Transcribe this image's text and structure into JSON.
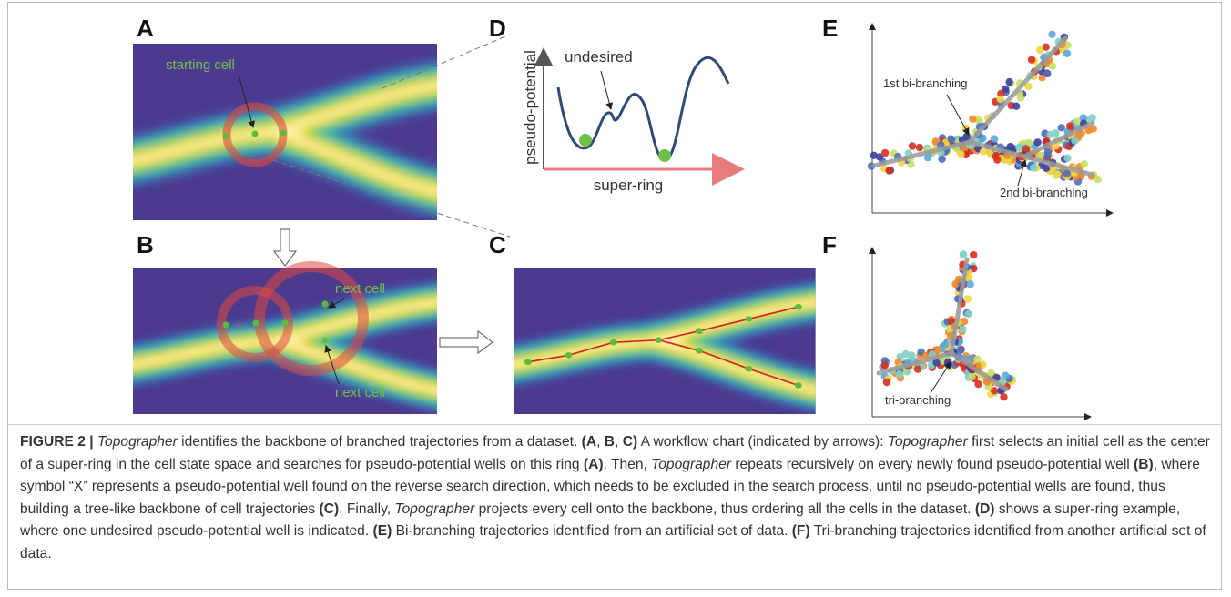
{
  "panel_labels": [
    "A",
    "B",
    "C",
    "D",
    "E",
    "F"
  ],
  "panel_a": {
    "annotation": "starting cell"
  },
  "panel_b": {
    "annotations": [
      "next cell",
      "next cell"
    ]
  },
  "panel_d": {
    "annotation": "undesired",
    "y_label": "pseudo-potential",
    "x_label": "super-ring"
  },
  "panel_e": {
    "annotations": [
      "1st bi-branching",
      "2nd bi-branching"
    ]
  },
  "panel_f": {
    "annotation": "tri-branching"
  },
  "caption": [
    {
      "text": "FIGURE 2 | ",
      "bold": true
    },
    {
      "text": "Topographer",
      "italic": true
    },
    {
      "text": " identifies the backbone of branched trajectories from a dataset. "
    },
    {
      "text": "(A",
      "bold": true
    },
    {
      "text": ", "
    },
    {
      "text": "B",
      "bold": true
    },
    {
      "text": ", "
    },
    {
      "text": "C)",
      "bold": true
    },
    {
      "text": " A workflow chart (indicated by arrows): "
    },
    {
      "text": "Topographer",
      "italic": true
    },
    {
      "text": " first selects an initial cell as the center of a super-ring in the cell state space and searches for pseudo-potential wells on this ring "
    },
    {
      "text": "(A)",
      "bold": true
    },
    {
      "text": ". Then, "
    },
    {
      "text": "Topographer",
      "italic": true
    },
    {
      "text": " repeats recursively on every newly found pseudo-potential well "
    },
    {
      "text": "(B)",
      "bold": true
    },
    {
      "text": ", where symbol “X” represents a pseudo-potential well found on the reverse search direction, which needs to be excluded in the search process, until no pseudo-potential wells are found, thus building a tree-like backbone of cell trajectories "
    },
    {
      "text": "(C)",
      "bold": true
    },
    {
      "text": ". Finally, "
    },
    {
      "text": "Topographer",
      "italic": true
    },
    {
      "text": " projects every cell onto the backbone, thus ordering all the cells in the dataset. "
    },
    {
      "text": "(D)",
      "bold": true
    },
    {
      "text": " shows a super-ring example, where one undesired pseudo-potential well is indicated. "
    },
    {
      "text": "(E)",
      "bold": true
    },
    {
      "text": " Bi-branching trajectories identified from an artificial set of data. "
    },
    {
      "text": "(F)",
      "bold": true
    },
    {
      "text": " Tri-branching trajectories identified from another artificial set of data."
    }
  ]
}
